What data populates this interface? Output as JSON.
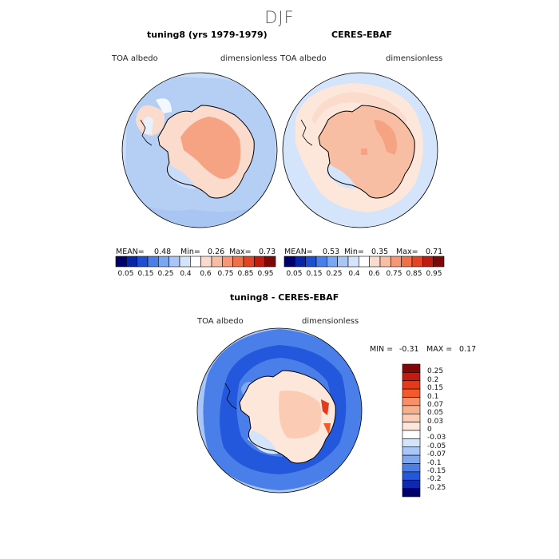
{
  "page": {
    "season": "DJF"
  },
  "panels": [
    {
      "title": "tuning8 (yrs 1979-1979)",
      "var_label": "TOA albedo",
      "units": "dimensionless",
      "stats": {
        "mean_label": "MEAN=",
        "mean": "0.48",
        "min_label": "Min=",
        "min": "0.26",
        "max_label": "Max=",
        "max": "0.73"
      }
    },
    {
      "title": "CERES-EBAF",
      "var_label": "TOA albedo",
      "units": "dimensionless",
      "stats": {
        "mean_label": "MEAN=",
        "mean": "0.53",
        "min_label": "Min=",
        "min": "0.35",
        "max_label": "Max=",
        "max": "0.71"
      }
    },
    {
      "title": "tuning8 - CERES-EBAF",
      "var_label": "TOA albedo",
      "units": "dimensionless",
      "stats": {
        "min_label": "MIN =",
        "min": "-0.31",
        "max_label": "MAX =",
        "max": "0.17"
      }
    }
  ],
  "colorbar_top": {
    "colors": [
      "#00006a",
      "#0a24a6",
      "#1e4fd0",
      "#4a7ee8",
      "#7aa6f2",
      "#aac6f6",
      "#d3e4fb",
      "#ffffff",
      "#fbdccc",
      "#f8bea4",
      "#f59878",
      "#f07048",
      "#e34424",
      "#c01c10",
      "#7e0808"
    ],
    "labels": [
      "0.05",
      "0.15",
      "0.25",
      "0.4",
      "0.6",
      "0.75",
      "0.85",
      "0.95"
    ]
  },
  "colorbar_diff": {
    "colors": [
      "#7e0808",
      "#c01c10",
      "#e43a1c",
      "#f25a2a",
      "#f7906a",
      "#f8b08c",
      "#fbcbb4",
      "#fde6da",
      "#ffffff",
      "#d4e5fb",
      "#aac6f6",
      "#7da8f2",
      "#4a7ee8",
      "#2458dc",
      "#0a2ab0",
      "#00006a"
    ],
    "labels": [
      "0.25",
      "0.2",
      "0.15",
      "0.1",
      "0.07",
      "0.05",
      "0.03",
      "0",
      "-0.03",
      "-0.05",
      "-0.07",
      "-0.1",
      "-0.15",
      "-0.2",
      "-0.25"
    ]
  },
  "chart_data": [
    {
      "type": "heatmap",
      "title": "tuning8 (yrs 1979-1979)",
      "variable": "TOA albedo",
      "units": "dimensionless",
      "season": "DJF",
      "projection": "south polar stereographic",
      "mean": 0.48,
      "min": 0.26,
      "max": 0.73,
      "levels": [
        0.05,
        0.1,
        0.15,
        0.2,
        0.25,
        0.3,
        0.4,
        0.5,
        0.6,
        0.7,
        0.75,
        0.8,
        0.85,
        0.9,
        0.95
      ]
    },
    {
      "type": "heatmap",
      "title": "CERES-EBAF",
      "variable": "TOA albedo",
      "units": "dimensionless",
      "season": "DJF",
      "projection": "south polar stereographic",
      "mean": 0.53,
      "min": 0.35,
      "max": 0.71,
      "levels": [
        0.05,
        0.1,
        0.15,
        0.2,
        0.25,
        0.3,
        0.4,
        0.5,
        0.6,
        0.7,
        0.75,
        0.8,
        0.85,
        0.9,
        0.95
      ]
    },
    {
      "type": "heatmap",
      "title": "tuning8 - CERES-EBAF",
      "variable": "TOA albedo",
      "units": "dimensionless",
      "season": "DJF",
      "projection": "south polar stereographic",
      "min": -0.31,
      "max": 0.17,
      "levels": [
        -0.25,
        -0.2,
        -0.15,
        -0.1,
        -0.07,
        -0.05,
        -0.03,
        0,
        0.03,
        0.05,
        0.07,
        0.1,
        0.15,
        0.2,
        0.25
      ]
    }
  ]
}
